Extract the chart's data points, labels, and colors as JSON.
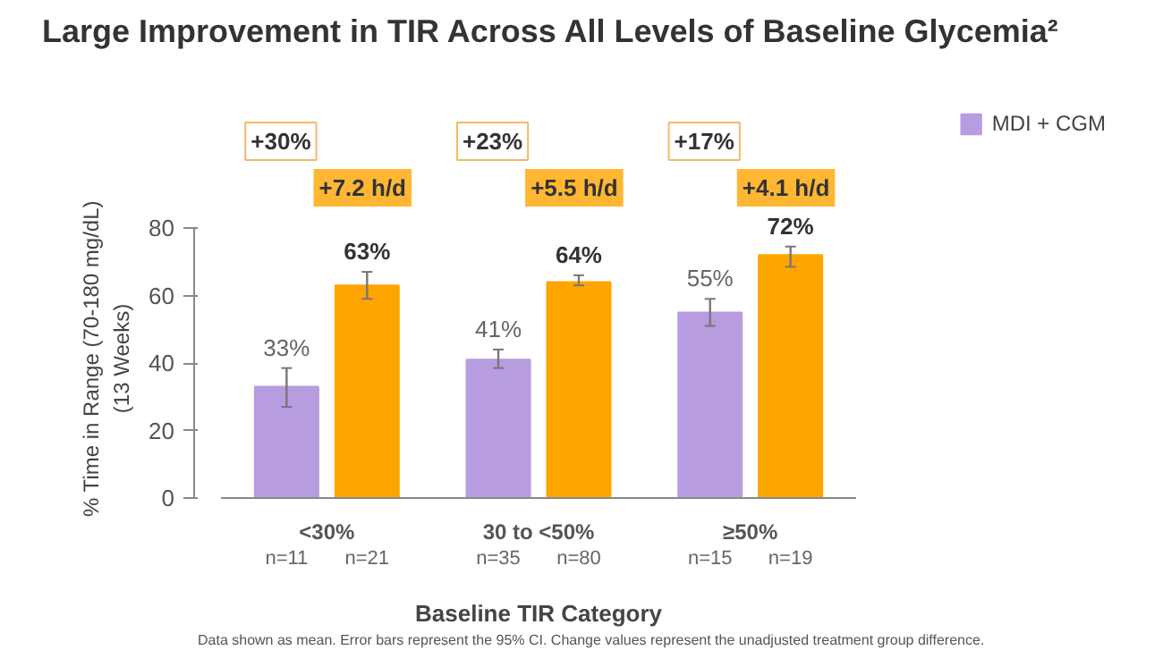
{
  "chart_data": {
    "type": "bar",
    "title": "Large Improvement in TIR Across All Levels of Baseline Glycemia²",
    "xlabel": "Baseline TIR Category",
    "ylabel": "% Time in Range (70-180 mg/dL)\n(13 Weeks)",
    "categories": [
      "<30%",
      "30 to <50%",
      "≥50%"
    ],
    "series": [
      {
        "name": "MDI + CGM",
        "color": "#b89ce0",
        "values": [
          33,
          41,
          55
        ],
        "errors": [
          [
            27,
            38.5
          ],
          [
            38.5,
            44
          ],
          [
            51,
            59
          ]
        ],
        "value_labels": [
          "33%",
          "41%",
          "55%"
        ]
      },
      {
        "color": "#ffa500",
        "values": [
          63,
          64,
          72
        ],
        "errors": [
          [
            59,
            67
          ],
          [
            63,
            66
          ],
          [
            68.5,
            74.5
          ]
        ],
        "value_labels": [
          "63%",
          "64%",
          "72%"
        ]
      }
    ],
    "ylim": [
      0,
      80
    ],
    "yticks": [
      0,
      20,
      40,
      60,
      80
    ],
    "grid": false,
    "legend": "top right",
    "annotations": [
      "+30%",
      "+7.2 h/d",
      "+23%",
      "+5.5 h/d",
      "+17%",
      "+4.1 h/d",
      "n=11",
      "n=21",
      "n=35",
      "n=80",
      "n=15",
      "n=19",
      "Data shown as mean. Error bars represent the 95% CI. Change values represent the unadjusted treatment group difference."
    ]
  }
}
